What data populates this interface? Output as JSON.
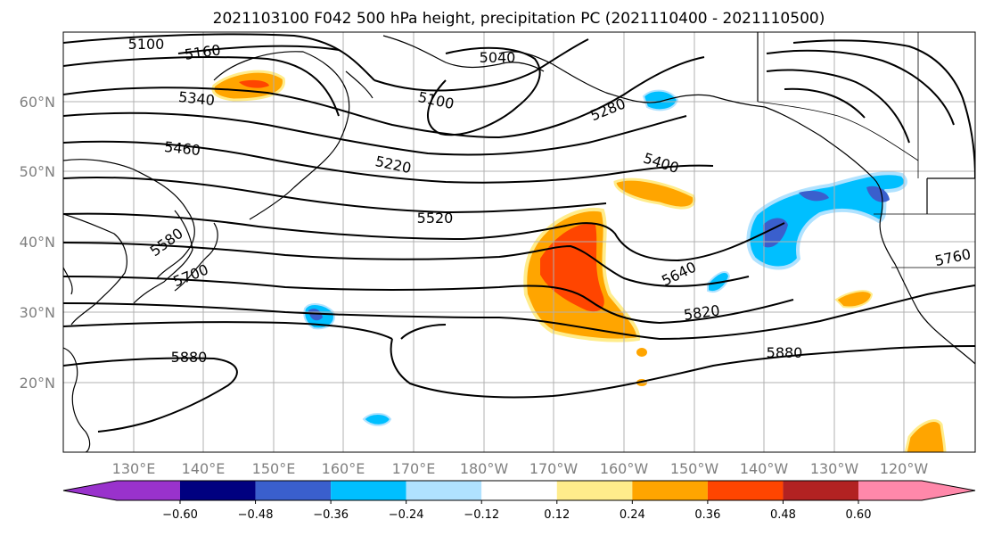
{
  "title": "2021103100 F042 500 hPa height, precipitation PC (2021110400 - 2021110500)",
  "map": {
    "lon_labels": [
      "130°E",
      "140°E",
      "150°E",
      "160°E",
      "170°E",
      "180°W",
      "170°W",
      "160°W",
      "150°W",
      "140°W",
      "130°W",
      "120°W"
    ],
    "lat_labels": [
      "20°N",
      "30°N",
      "40°N",
      "50°N",
      "60°N"
    ]
  },
  "contour_labels": [
    "5100",
    "5160",
    "5040",
    "5340",
    "5100",
    "5280",
    "5460",
    "5220",
    "5400",
    "5520",
    "5580",
    "5700",
    "5640",
    "5820",
    "5760",
    "5880",
    "5880"
  ],
  "colorbar": {
    "ticks": [
      "−0.60",
      "−0.48",
      "−0.36",
      "−0.24",
      "−0.12",
      "0.12",
      "0.24",
      "0.36",
      "0.48",
      "0.60"
    ],
    "colors": [
      "#9932cc",
      "#000080",
      "#3a5fcd",
      "#00bfff",
      "#b0e2ff",
      "#ffffff",
      "#ffec8b",
      "#ffa500",
      "#ff4500",
      "#b22222",
      "#ff88aa"
    ]
  }
}
